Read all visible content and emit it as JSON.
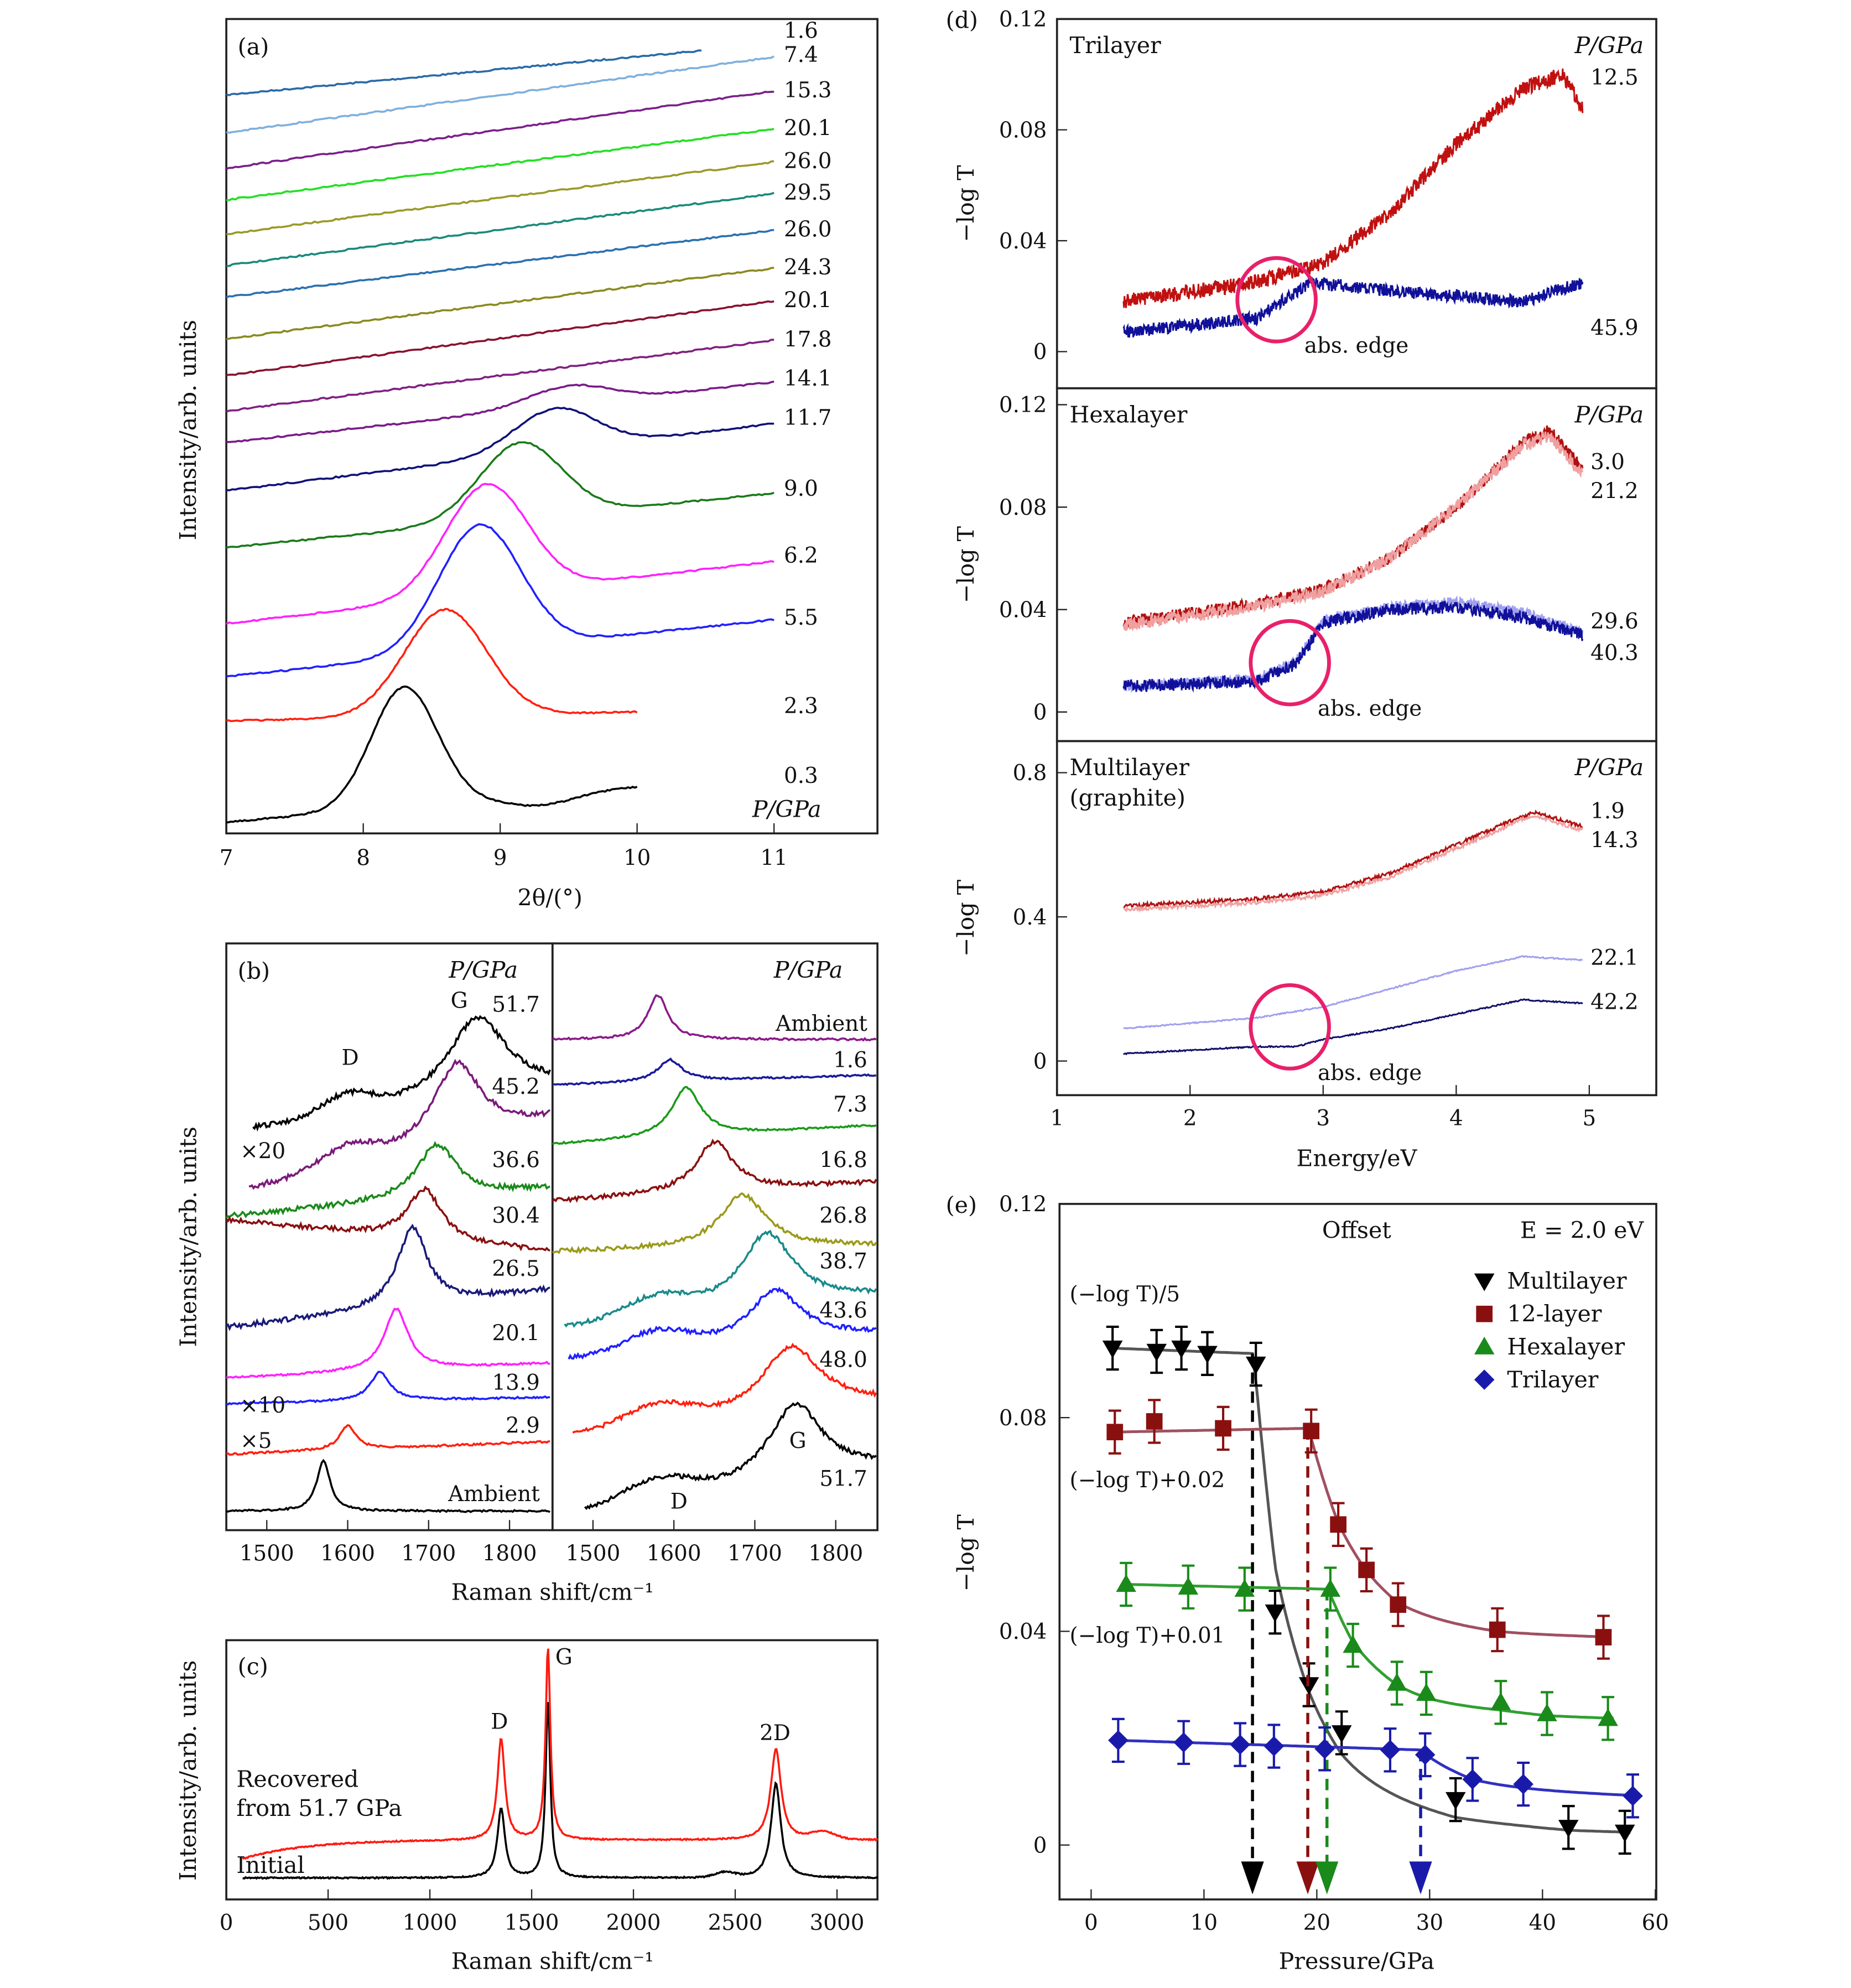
{
  "chart_data": [
    {
      "panel": "(a)",
      "type": "line",
      "xlabel": "2θ/(°)",
      "ylabel": "Intensity/arb. units",
      "x_ticks": [
        "7",
        "8",
        "9",
        "10",
        "11"
      ],
      "xlim": [
        7,
        11.8
      ],
      "legend_title": "P/GPa",
      "series": [
        {
          "name": "1.6",
          "color": "#2a6aa8",
          "peak_2theta": null
        },
        {
          "name": "7.4",
          "color": "#7fb0dd",
          "peak_2theta": null
        },
        {
          "name": "15.3",
          "color": "#7a1f8a",
          "peak_2theta": null
        },
        {
          "name": "20.1",
          "color": "#22e022",
          "peak_2theta": null
        },
        {
          "name": "26.0",
          "color": "#9a9a2a",
          "peak_2theta": null
        },
        {
          "name": "29.5",
          "color": "#1a8a7a",
          "peak_2theta": null
        },
        {
          "name": "26.0",
          "color": "#2a70b0",
          "peak_2theta": null
        },
        {
          "name": "24.3",
          "color": "#8a8a20",
          "peak_2theta": null
        },
        {
          "name": "20.1",
          "color": "#8a1030",
          "peak_2theta": null
        },
        {
          "name": "17.8",
          "color": "#802080",
          "peak_2theta": null
        },
        {
          "name": "14.1",
          "color": "#7a1a8a",
          "peak_2theta": 9.5
        },
        {
          "name": "11.7",
          "color": "#10107a",
          "peak_2theta": 9.4
        },
        {
          "name": "9.0",
          "color": "#1a7a1a",
          "peak_2theta": 9.15
        },
        {
          "name": "6.2",
          "color": "#ff20ff",
          "peak_2theta": 8.9
        },
        {
          "name": "5.5",
          "color": "#2020ff",
          "peak_2theta": 8.85
        },
        {
          "name": "2.3",
          "color": "#ff2010",
          "peak_2theta": 8.6
        },
        {
          "name": "0.3",
          "color": "#000000",
          "peak_2theta": 8.3
        }
      ]
    },
    {
      "panel": "(b)",
      "type": "line",
      "xlabel": "Raman shift/cm⁻¹",
      "ylabel": "Intensity/arb. units",
      "x_ticks": [
        "1500",
        "1600",
        "1700",
        "1800"
      ],
      "xlim": [
        1450,
        1850
      ],
      "left": {
        "legend_title": "P/GPa",
        "annotations": {
          "g": "G",
          "d": "D",
          "x20": "×20",
          "x10": "×10",
          "x5": "×5"
        },
        "series": [
          {
            "name": "51.7",
            "color": "#000000",
            "g_peak": 1760
          },
          {
            "name": "45.2",
            "color": "#7a1a7a",
            "g_peak": 1735
          },
          {
            "name": "36.6",
            "color": "#1a8a1a",
            "g_peak": 1710
          },
          {
            "name": "30.4",
            "color": "#8a1010",
            "g_peak": 1695
          },
          {
            "name": "26.5",
            "color": "#1a1a7a",
            "g_peak": 1680
          },
          {
            "name": "20.1",
            "color": "#ff20ff",
            "g_peak": 1660
          },
          {
            "name": "13.9",
            "color": "#2020ff",
            "g_peak": 1640
          },
          {
            "name": "2.9",
            "color": "#ff2010",
            "g_peak": 1600
          },
          {
            "name": "Ambient",
            "color": "#000000",
            "g_peak": 1570
          }
        ]
      },
      "right": {
        "legend_title": "P/GPa",
        "annotations": {
          "g": "G",
          "d": "D"
        },
        "series": [
          {
            "name": "Ambient",
            "color": "#8a1a8a",
            "g_peak": 1580
          },
          {
            "name": "1.6",
            "color": "#1a1a9a",
            "g_peak": 1595
          },
          {
            "name": "7.3",
            "color": "#1a9a1a",
            "g_peak": 1615
          },
          {
            "name": "16.8",
            "color": "#8a1010",
            "g_peak": 1650
          },
          {
            "name": "26.8",
            "color": "#9a9a1a",
            "g_peak": 1685
          },
          {
            "name": "38.7",
            "color": "#1a8a8a",
            "g_peak": 1715
          },
          {
            "name": "43.6",
            "color": "#2020ff",
            "g_peak": 1725
          },
          {
            "name": "48.0",
            "color": "#ff2010",
            "g_peak": 1745
          },
          {
            "name": "51.7",
            "color": "#000000",
            "g_peak": 1750
          }
        ]
      }
    },
    {
      "panel": "(c)",
      "type": "line",
      "xlabel": "Raman shift/cm⁻¹",
      "ylabel": "Intensity/arb. units",
      "x_ticks": [
        "0",
        "500",
        "1000",
        "1500",
        "2000",
        "2500",
        "3000"
      ],
      "xlim": [
        0,
        3200
      ],
      "peaks": [
        {
          "label": "D",
          "shift": 1350
        },
        {
          "label": "G",
          "shift": 1580
        },
        {
          "label": "2D",
          "shift": 2700
        }
      ],
      "series": [
        {
          "name_line1": "Recovered",
          "name_line2": "from 51.7 GPa",
          "color": "#ff1a10"
        },
        {
          "name": "Initial",
          "color": "#000000"
        }
      ]
    },
    {
      "panel": "(d)",
      "type": "line",
      "xlabel": "Energy/eV",
      "ylabel": "−log T",
      "x_ticks": [
        "1",
        "2",
        "3",
        "4",
        "5"
      ],
      "xlim": [
        1,
        5.5
      ],
      "annotation": "abs. edge",
      "subplots": [
        {
          "title": "Trilayer",
          "legend_title": "P/GPa",
          "y_ticks": [
            "0",
            "0.04",
            "0.08",
            "0.12"
          ],
          "ylim": [
            0,
            0.12
          ],
          "edge_eV": 2.65,
          "series": [
            {
              "name": "12.5",
              "color": "#c01010",
              "points": [
                [
                  1.5,
                  0.018
                ],
                [
                  2.5,
                  0.025
                ],
                [
                  3.0,
                  0.032
                ],
                [
                  3.5,
                  0.05
                ],
                [
                  4.0,
                  0.075
                ],
                [
                  4.5,
                  0.095
                ],
                [
                  4.8,
                  0.1
                ],
                [
                  4.95,
                  0.088
                ]
              ]
            },
            {
              "name": "45.9",
              "color": "#10109a",
              "points": [
                [
                  1.5,
                  0.007
                ],
                [
                  2.5,
                  0.012
                ],
                [
                  2.9,
                  0.025
                ],
                [
                  3.5,
                  0.022
                ],
                [
                  4.0,
                  0.02
                ],
                [
                  4.5,
                  0.018
                ],
                [
                  4.95,
                  0.025
                ]
              ]
            }
          ]
        },
        {
          "title": "Hexalayer",
          "legend_title": "P/GPa",
          "y_ticks": [
            "0",
            "0.04",
            "0.08",
            "0.12"
          ],
          "ylim": [
            0,
            0.12
          ],
          "edge_eV": 2.75,
          "series": [
            {
              "name": "3.0",
              "color": "#b01010",
              "points": [
                [
                  1.5,
                  0.035
                ],
                [
                  2.5,
                  0.042
                ],
                [
                  3.0,
                  0.048
                ],
                [
                  3.5,
                  0.06
                ],
                [
                  4.0,
                  0.08
                ],
                [
                  4.5,
                  0.105
                ],
                [
                  4.7,
                  0.11
                ],
                [
                  4.95,
                  0.095
                ]
              ]
            },
            {
              "name": "21.2",
              "color": "#f0a0a0",
              "points": [
                [
                  1.5,
                  0.034
                ],
                [
                  2.5,
                  0.041
                ],
                [
                  3.0,
                  0.047
                ],
                [
                  3.5,
                  0.06
                ],
                [
                  4.0,
                  0.08
                ],
                [
                  4.5,
                  0.104
                ],
                [
                  4.7,
                  0.108
                ],
                [
                  4.95,
                  0.093
                ]
              ]
            },
            {
              "name": "29.6",
              "color": "#a0a0f0",
              "points": [
                [
                  1.5,
                  0.01
                ],
                [
                  2.5,
                  0.013
                ],
                [
                  2.8,
                  0.02
                ],
                [
                  3.0,
                  0.036
                ],
                [
                  3.5,
                  0.041
                ],
                [
                  4.0,
                  0.043
                ],
                [
                  4.5,
                  0.039
                ],
                [
                  4.95,
                  0.031
                ]
              ]
            },
            {
              "name": "40.3",
              "color": "#10109a",
              "points": [
                [
                  1.5,
                  0.01
                ],
                [
                  2.5,
                  0.012
                ],
                [
                  2.8,
                  0.019
                ],
                [
                  3.0,
                  0.035
                ],
                [
                  3.5,
                  0.04
                ],
                [
                  4.0,
                  0.041
                ],
                [
                  4.5,
                  0.037
                ],
                [
                  4.95,
                  0.03
                ]
              ]
            }
          ]
        },
        {
          "title": "Multilayer",
          "title_line2": "(graphite)",
          "legend_title": "P/GPa",
          "y_ticks": [
            "0",
            "0.4",
            "0.8"
          ],
          "ylim": [
            0,
            0.8
          ],
          "edge_eV": 2.75,
          "series": [
            {
              "name": "1.9",
              "color": "#b01010",
              "points": [
                [
                  1.5,
                  0.43
                ],
                [
                  2.5,
                  0.45
                ],
                [
                  3.0,
                  0.47
                ],
                [
                  3.5,
                  0.52
                ],
                [
                  4.0,
                  0.6
                ],
                [
                  4.5,
                  0.68
                ],
                [
                  4.6,
                  0.69
                ],
                [
                  4.95,
                  0.65
                ]
              ]
            },
            {
              "name": "14.3",
              "color": "#f0a0a0",
              "points": [
                [
                  1.5,
                  0.42
                ],
                [
                  2.5,
                  0.44
                ],
                [
                  3.0,
                  0.46
                ],
                [
                  3.5,
                  0.51
                ],
                [
                  4.0,
                  0.59
                ],
                [
                  4.5,
                  0.67
                ],
                [
                  4.6,
                  0.68
                ],
                [
                  4.95,
                  0.64
                ]
              ]
            },
            {
              "name": "22.1",
              "color": "#a0a0f0",
              "points": [
                [
                  1.5,
                  0.09
                ],
                [
                  2.5,
                  0.12
                ],
                [
                  3.0,
                  0.15
                ],
                [
                  3.5,
                  0.2
                ],
                [
                  4.0,
                  0.25
                ],
                [
                  4.5,
                  0.29
                ],
                [
                  4.95,
                  0.28
                ]
              ]
            },
            {
              "name": "42.2",
              "color": "#10106a",
              "points": [
                [
                  1.5,
                  0.02
                ],
                [
                  2.5,
                  0.04
                ],
                [
                  2.8,
                  0.04
                ],
                [
                  3.0,
                  0.06
                ],
                [
                  3.5,
                  0.09
                ],
                [
                  4.0,
                  0.13
                ],
                [
                  4.5,
                  0.17
                ],
                [
                  4.95,
                  0.16
                ]
              ]
            }
          ]
        }
      ]
    },
    {
      "panel": "(e)",
      "type": "scatter",
      "xlabel": "Pressure/GPa",
      "ylabel": "−log T",
      "x_ticks": [
        "0",
        "10",
        "20",
        "30",
        "40",
        "60"
      ],
      "y_ticks": [
        "0",
        "0.04",
        "0.08",
        "0.12"
      ],
      "ylim": [
        -0.01,
        0.12
      ],
      "title_left": "Offset",
      "title_right": "E = 2.0 eV",
      "legend_placement": "top-right",
      "error_bar": 0.004,
      "offset_labels": [
        "(−log T)/5",
        "(−log T)+0.02",
        "(−log T)+0.01"
      ],
      "series": [
        {
          "name": "Multilayer",
          "marker": "triangle-down",
          "color": "#000000",
          "fit_color": "#555555",
          "transition_GPa": 14.3,
          "points": [
            [
              1.9,
              0.093
            ],
            [
              5.8,
              0.0924
            ],
            [
              8.0,
              0.093
            ],
            [
              10.3,
              0.092
            ],
            [
              14.6,
              0.09
            ],
            [
              16.3,
              0.0436
            ],
            [
              19.3,
              0.03
            ],
            [
              22.2,
              0.021
            ],
            [
              32.3,
              0.0085
            ],
            [
              42.3,
              0.0033
            ],
            [
              47.3,
              0.0024
            ]
          ]
        },
        {
          "name": "12-layer",
          "marker": "square",
          "color": "#8a1010",
          "fit_color": "#a05060",
          "transition_GPa": 19.2,
          "points": [
            [
              2.1,
              0.0773
            ],
            [
              5.6,
              0.0793
            ],
            [
              11.7,
              0.078
            ],
            [
              19.5,
              0.0775
            ],
            [
              21.9,
              0.06
            ],
            [
              24.4,
              0.0515
            ],
            [
              27.2,
              0.045
            ],
            [
              36.0,
              0.0403
            ],
            [
              45.4,
              0.0389
            ]
          ]
        },
        {
          "name": "Hexalayer",
          "marker": "triangle-up",
          "color": "#1a8a1a",
          "fit_color": "#30a030",
          "transition_GPa": 20.9,
          "points": [
            [
              3.1,
              0.0488
            ],
            [
              8.6,
              0.0483
            ],
            [
              13.6,
              0.0479
            ],
            [
              21.2,
              0.0479
            ],
            [
              23.2,
              0.0374
            ],
            [
              27.1,
              0.0303
            ],
            [
              29.7,
              0.0284
            ],
            [
              36.3,
              0.0267
            ],
            [
              40.4,
              0.0246
            ],
            [
              45.8,
              0.0237
            ]
          ]
        },
        {
          "name": "Trilayer",
          "marker": "diamond",
          "color": "#1a1aaa",
          "fit_color": "#3030c0",
          "transition_GPa": 29.2,
          "points": [
            [
              2.4,
              0.0196
            ],
            [
              8.2,
              0.0192
            ],
            [
              13.2,
              0.0188
            ],
            [
              16.2,
              0.0185
            ],
            [
              20.7,
              0.018
            ],
            [
              26.5,
              0.0178
            ],
            [
              29.6,
              0.0169
            ],
            [
              33.8,
              0.0123
            ],
            [
              38.3,
              0.0114
            ],
            [
              48.0,
              0.0092
            ]
          ]
        }
      ]
    }
  ]
}
